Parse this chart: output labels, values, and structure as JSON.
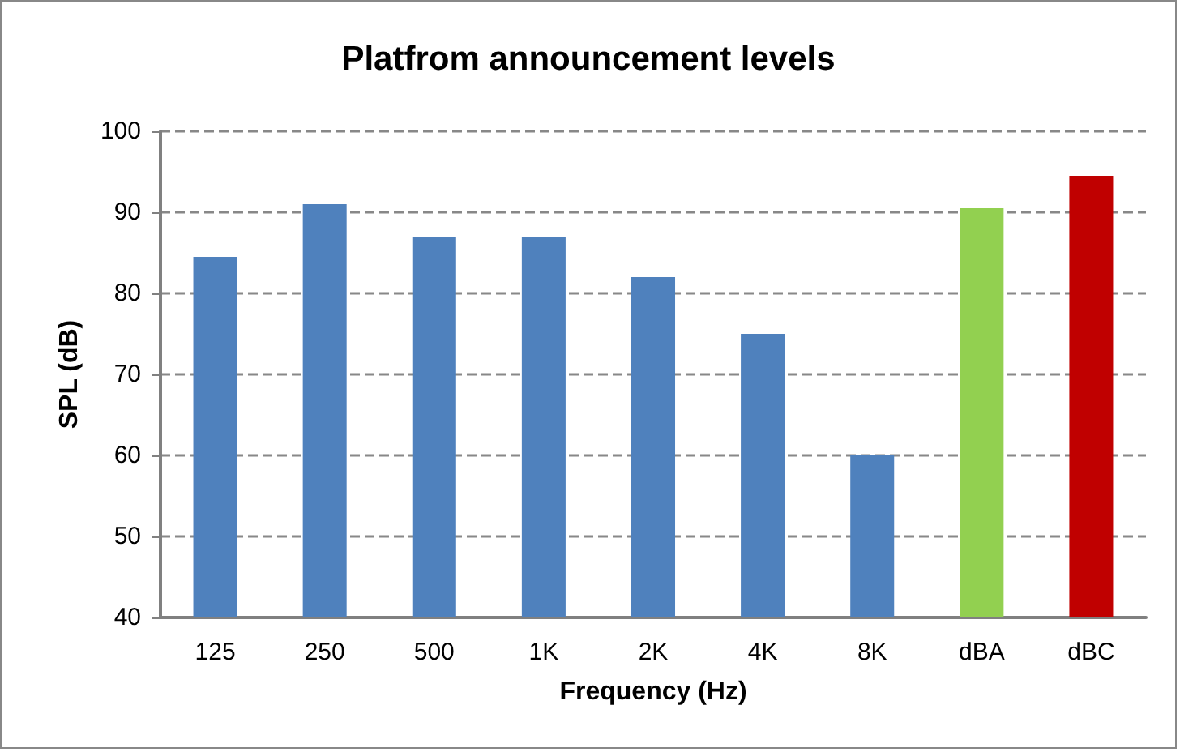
{
  "chart_data": {
    "type": "bar",
    "title": "Platfrom announcement levels",
    "xlabel": "Frequency (Hz)",
    "ylabel": "SPL (dB)",
    "categories": [
      "125",
      "250",
      "500",
      "1K",
      "2K",
      "4K",
      "8K",
      "dBA",
      "dBC"
    ],
    "values": [
      84.5,
      91,
      87,
      87,
      82,
      75,
      60,
      90.5,
      94.5
    ],
    "colors": [
      "#4f81bd",
      "#4f81bd",
      "#4f81bd",
      "#4f81bd",
      "#4f81bd",
      "#4f81bd",
      "#4f81bd",
      "#92d050",
      "#c00000"
    ],
    "ylim": [
      40,
      100
    ],
    "yticks": [
      40,
      50,
      60,
      70,
      80,
      90,
      100
    ],
    "grid": "y"
  }
}
